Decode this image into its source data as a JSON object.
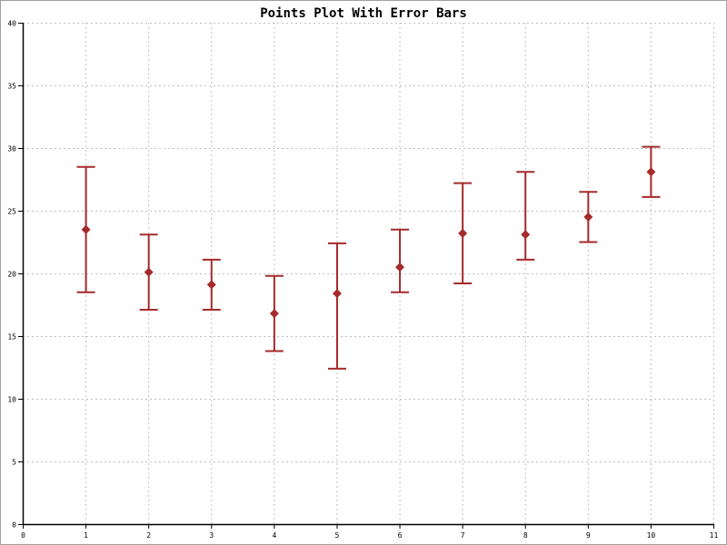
{
  "chart_data": {
    "type": "scatter",
    "title": "Points Plot With Error Bars",
    "xlabel": "",
    "ylabel": "",
    "xlim": [
      0,
      11
    ],
    "ylim": [
      0,
      40
    ],
    "xticks": [
      0,
      1,
      2,
      3,
      4,
      5,
      6,
      7,
      8,
      9,
      10,
      11
    ],
    "yticks": [
      0,
      5,
      10,
      15,
      20,
      25,
      30,
      35,
      40
    ],
    "grid": true,
    "marker": "diamond",
    "color": "#a52a2a",
    "points": [
      {
        "x": 1,
        "y": 23.5,
        "ymin": 18.5,
        "ymax": 28.5
      },
      {
        "x": 2,
        "y": 20.1,
        "ymin": 17.1,
        "ymax": 23.1
      },
      {
        "x": 3,
        "y": 19.1,
        "ymin": 17.1,
        "ymax": 21.1
      },
      {
        "x": 4,
        "y": 16.8,
        "ymin": 13.8,
        "ymax": 19.8
      },
      {
        "x": 5,
        "y": 18.4,
        "ymin": 12.4,
        "ymax": 22.4
      },
      {
        "x": 6,
        "y": 20.5,
        "ymin": 18.5,
        "ymax": 23.5
      },
      {
        "x": 7,
        "y": 23.2,
        "ymin": 19.2,
        "ymax": 27.2
      },
      {
        "x": 8,
        "y": 23.1,
        "ymin": 21.1,
        "ymax": 28.1
      },
      {
        "x": 9,
        "y": 24.5,
        "ymin": 22.5,
        "ymax": 26.5
      },
      {
        "x": 10,
        "y": 28.1,
        "ymin": 26.1,
        "ymax": 30.1
      }
    ]
  }
}
